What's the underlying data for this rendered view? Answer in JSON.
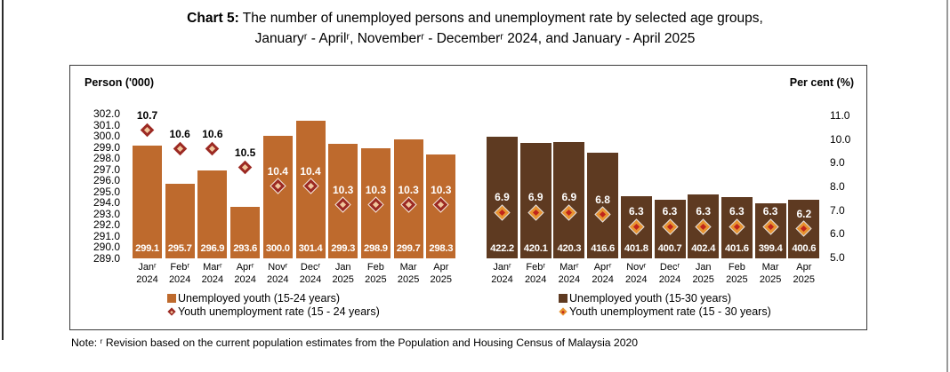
{
  "title": {
    "prefix": "Chart 5:",
    "line1_rest": " The number of unemployed persons and unemployment rate by selected age groups,",
    "line2": "Januaryʳ - Aprilʳ, Novemberʳ - Decemberʳ 2024, and January - April 2025"
  },
  "axes": {
    "left_label": "Person ('000)",
    "right_label": "Per cent (%)",
    "left_ticks": [
      "302.0",
      "301.0",
      "300.0",
      "299.0",
      "298.0",
      "297.0",
      "296.0",
      "295.0",
      "294.0",
      "293.0",
      "292.0",
      "291.0",
      "290.0",
      "289.0"
    ],
    "right_ticks": [
      "11.0",
      "10.0",
      "9.0",
      "8.0",
      "7.0",
      "6.0",
      "5.0"
    ]
  },
  "colors": {
    "left_bar": "#BE6A2D",
    "right_bar": "#5E3A21",
    "left_diamond_border": "#9C2A23",
    "left_diamond_fill": "#F0C69C",
    "right_diamond_border": "#E79331",
    "right_diamond_fill": "#C0251C"
  },
  "chart_data": [
    {
      "type": "bar",
      "group": "youth 15-24 years",
      "categories": [
        "Janʳ\n2024",
        "Febʳ\n2024",
        "Marʳ\n2024",
        "Aprʳ\n2024",
        "Novʳ\n2024",
        "Decʳ\n2024",
        "Jan\n2025",
        "Feb\n2025",
        "Mar\n2025",
        "Apr\n2025"
      ],
      "series": [
        {
          "name": "Unemployed youth (15-24 years)",
          "unit": "Person ('000)",
          "values": [
            299.1,
            295.7,
            296.9,
            293.6,
            300.0,
            301.4,
            299.3,
            298.9,
            299.7,
            298.3
          ]
        },
        {
          "name": "Youth unemployment rate (15 - 24 years)",
          "unit": "Per cent (%)",
          "values": [
            10.7,
            10.6,
            10.6,
            10.5,
            10.4,
            10.4,
            10.3,
            10.3,
            10.3,
            10.3
          ]
        }
      ],
      "bar_axis": {
        "label": "Person ('000)",
        "min": 289.0,
        "max": 302.0,
        "tick_step": 1.0,
        "side": "left"
      },
      "rate_axis": {
        "visible": false,
        "min": 10.25,
        "max": 10.75
      },
      "grid": false
    },
    {
      "type": "bar",
      "group": "youth 15-30 years",
      "categories": [
        "Janʳ\n2024",
        "Febʳ\n2024",
        "Marʳ\n2024",
        "Aprʳ\n2024",
        "Novʳ\n2024",
        "Decʳ\n2024",
        "Jan\n2025",
        "Feb\n2025",
        "Mar\n2025",
        "Apr\n2025"
      ],
      "series": [
        {
          "name": "Unemployed youth (15-30 years)",
          "unit": "Person ('000)",
          "values": [
            422.2,
            420.1,
            420.3,
            416.6,
            401.8,
            400.7,
            402.4,
            401.6,
            399.4,
            400.6
          ]
        },
        {
          "name": "Youth unemployment rate (15 - 30 years)",
          "unit": "Per cent (%)",
          "values": [
            6.9,
            6.9,
            6.9,
            6.8,
            6.3,
            6.3,
            6.3,
            6.3,
            6.3,
            6.2
          ]
        }
      ],
      "bar_axis": {
        "label": "hidden",
        "min": 380.5,
        "max": 430.0,
        "side": "none"
      },
      "rate_axis": {
        "visible": true,
        "label": "Per cent (%)",
        "min": 5.0,
        "max": 11.0,
        "tick_step": 1.0,
        "side": "right"
      },
      "grid": false
    }
  ],
  "legends": [
    {
      "items": [
        {
          "marker": "square",
          "label": "Unemployed youth (15-24 years)"
        },
        {
          "marker": "diamond",
          "label": "Youth unemployment rate (15 - 24 years)"
        }
      ]
    },
    {
      "items": [
        {
          "marker": "square",
          "label": "Unemployed youth (15-30 years)"
        },
        {
          "marker": "diamond",
          "label": "Youth unemployment rate (15 - 30 years)"
        }
      ]
    }
  ],
  "note": "Note: ʳ Revision based on the current population estimates from the Population and Housing Census of Malaysia 2020"
}
